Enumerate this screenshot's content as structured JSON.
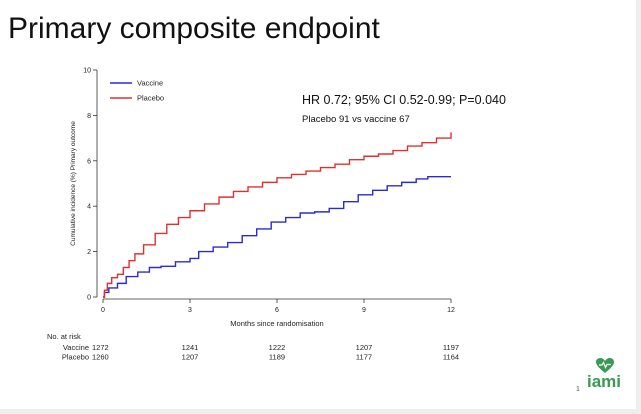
{
  "slide": {
    "title": "Primary composite endpoint",
    "page_number": "1",
    "logo_text": "iami"
  },
  "chart_data": {
    "type": "line",
    "ylabel": "Cumulative incidence (%) Primary outcome",
    "xlabel": "Months since randomisation",
    "xlim": [
      0,
      12
    ],
    "ylim": [
      0,
      10
    ],
    "xticks": [
      0,
      3,
      6,
      9,
      12
    ],
    "yticks": [
      0,
      2,
      4,
      6,
      8,
      10
    ],
    "grid": false,
    "legend_position": "top-left",
    "annotation": {
      "line1": "HR 0.72; 95% CI 0.52-0.99; P=0.040",
      "line2": "Placebo 91 vs vaccine 67"
    },
    "series": [
      {
        "name": "Vaccine",
        "color": "#2a2ad6",
        "points": [
          [
            0,
            0
          ],
          [
            0.05,
            0.2
          ],
          [
            0.2,
            0.4
          ],
          [
            0.5,
            0.6
          ],
          [
            0.8,
            0.9
          ],
          [
            1.2,
            1.1
          ],
          [
            1.6,
            1.3
          ],
          [
            2.0,
            1.35
          ],
          [
            2.5,
            1.55
          ],
          [
            3.0,
            1.7
          ],
          [
            3.3,
            2.0
          ],
          [
            3.8,
            2.2
          ],
          [
            4.3,
            2.4
          ],
          [
            4.8,
            2.7
          ],
          [
            5.3,
            3.0
          ],
          [
            5.8,
            3.3
          ],
          [
            6.3,
            3.5
          ],
          [
            6.8,
            3.7
          ],
          [
            7.3,
            3.75
          ],
          [
            7.8,
            3.9
          ],
          [
            8.3,
            4.2
          ],
          [
            8.8,
            4.5
          ],
          [
            9.3,
            4.7
          ],
          [
            9.8,
            4.9
          ],
          [
            10.3,
            5.05
          ],
          [
            10.8,
            5.2
          ],
          [
            11.2,
            5.3
          ],
          [
            12.0,
            5.3
          ]
        ]
      },
      {
        "name": "Placebo",
        "color": "#e03030",
        "points": [
          [
            0,
            0
          ],
          [
            0.05,
            0.3
          ],
          [
            0.15,
            0.6
          ],
          [
            0.3,
            0.85
          ],
          [
            0.5,
            1.0
          ],
          [
            0.7,
            1.3
          ],
          [
            0.9,
            1.6
          ],
          [
            1.1,
            1.9
          ],
          [
            1.4,
            2.3
          ],
          [
            1.8,
            2.8
          ],
          [
            2.2,
            3.2
          ],
          [
            2.6,
            3.5
          ],
          [
            3.0,
            3.8
          ],
          [
            3.5,
            4.1
          ],
          [
            4.0,
            4.4
          ],
          [
            4.5,
            4.65
          ],
          [
            5.0,
            4.85
          ],
          [
            5.5,
            5.05
          ],
          [
            6.0,
            5.25
          ],
          [
            6.5,
            5.4
          ],
          [
            7.0,
            5.55
          ],
          [
            7.5,
            5.7
          ],
          [
            8.0,
            5.85
          ],
          [
            8.5,
            6.05
          ],
          [
            9.0,
            6.2
          ],
          [
            9.5,
            6.3
          ],
          [
            10.0,
            6.45
          ],
          [
            10.5,
            6.65
          ],
          [
            11.0,
            6.8
          ],
          [
            11.5,
            7.0
          ],
          [
            12.0,
            7.25
          ]
        ]
      }
    ],
    "risk_table": {
      "header": "No. at risk",
      "rows": [
        {
          "label": "Vaccine",
          "values": [
            "1272",
            "1241",
            "1222",
            "1207",
            "1197"
          ]
        },
        {
          "label": "Placebo",
          "values": [
            "1260",
            "1207",
            "1189",
            "1177",
            "1164"
          ]
        }
      ]
    }
  }
}
